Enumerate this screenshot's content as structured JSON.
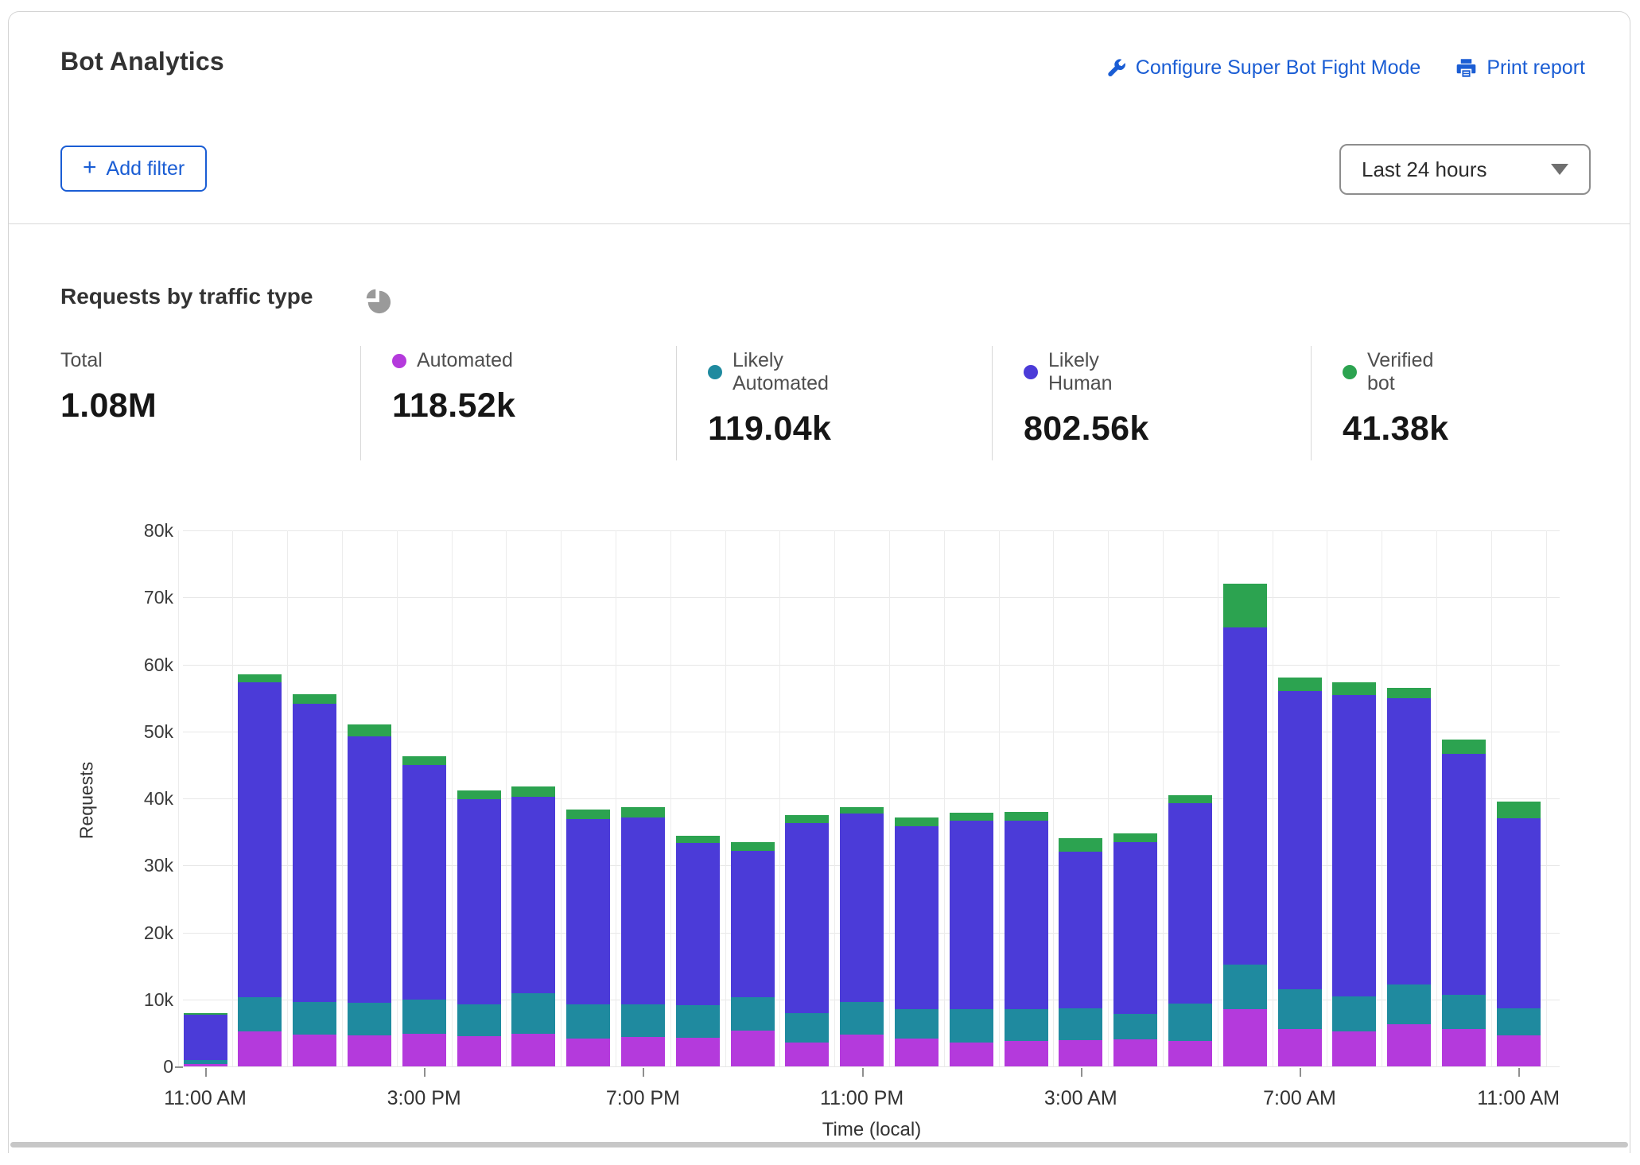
{
  "header": {
    "title": "Bot Analytics",
    "configure_label": "Configure Super Bot Fight Mode",
    "print_label": "Print report"
  },
  "filters": {
    "plus_glyph": "+",
    "add_filter_label": "Add filter",
    "time_range_value": "Last 24 hours"
  },
  "section": {
    "title": "Requests by traffic type"
  },
  "colors": {
    "link_blue": "#1a5dd4",
    "automated": "#b43adc",
    "likely_automated": "#1f8a9f",
    "likely_human": "#4b3bd8",
    "verified_bot": "#2ca350",
    "pie_icon_gray": "#9a9a9a"
  },
  "stats": {
    "items": [
      {
        "label": "Total",
        "value": "1.08M",
        "color": null
      },
      {
        "label": "Automated",
        "value": "118.52k",
        "color": "#b43adc"
      },
      {
        "label": "Likely Automated",
        "value": "119.04k",
        "color": "#1f8a9f"
      },
      {
        "label": "Likely Human",
        "value": "802.56k",
        "color": "#4b3bd8"
      },
      {
        "label": "Verified bot",
        "value": "41.38k",
        "color": "#2ca350"
      }
    ]
  },
  "chart_data": {
    "type": "bar",
    "stacked": true,
    "title": "Requests by traffic type",
    "xlabel": "Time (local)",
    "ylabel": "Requests",
    "unit": "thousands of requests per hour",
    "ylim": [
      0,
      80
    ],
    "ytick_step": 10,
    "ytick_labels": [
      "0",
      "10k",
      "20k",
      "30k",
      "40k",
      "50k",
      "60k",
      "70k",
      "80k"
    ],
    "grid": true,
    "legend_position": "top-stats-row",
    "x_hours": [
      "11:00 AM",
      "12:00 PM",
      "1:00 PM",
      "2:00 PM",
      "3:00 PM",
      "4:00 PM",
      "5:00 PM",
      "6:00 PM",
      "7:00 PM",
      "8:00 PM",
      "9:00 PM",
      "10:00 PM",
      "11:00 PM",
      "12:00 AM",
      "1:00 AM",
      "2:00 AM",
      "3:00 AM",
      "4:00 AM",
      "5:00 AM",
      "6:00 AM",
      "7:00 AM",
      "8:00 AM",
      "9:00 AM",
      "10:00 AM",
      "11:00 AM"
    ],
    "xtick_indices": [
      0,
      4,
      8,
      12,
      16,
      20,
      24
    ],
    "xtick_labels": [
      "11:00 AM",
      "3:00 PM",
      "7:00 PM",
      "11:00 PM",
      "3:00 AM",
      "7:00 AM",
      "11:00 AM"
    ],
    "series": [
      {
        "name": "Automated",
        "color": "#b43adc",
        "values": [
          0.4,
          5.2,
          4.7,
          4.6,
          4.9,
          4.5,
          4.9,
          4.2,
          4.4,
          4.3,
          5.3,
          3.6,
          4.7,
          4.2,
          3.6,
          3.8,
          3.9,
          4.0,
          3.8,
          8.5,
          5.6,
          5.2,
          6.3,
          5.6,
          4.6
        ]
      },
      {
        "name": "Likely Automated",
        "color": "#1f8a9f",
        "values": [
          0.5,
          5.1,
          4.9,
          4.9,
          5.1,
          4.8,
          6.0,
          5.1,
          4.8,
          4.8,
          5.0,
          4.4,
          4.9,
          4.4,
          4.9,
          4.7,
          4.8,
          3.8,
          5.6,
          6.7,
          5.9,
          5.2,
          5.9,
          5.1,
          4.1
        ]
      },
      {
        "name": "Likely Human",
        "color": "#4b3bd8",
        "values": [
          6.8,
          47.0,
          44.5,
          39.8,
          35.0,
          30.6,
          29.3,
          27.6,
          28.0,
          24.2,
          21.9,
          28.3,
          28.1,
          27.2,
          28.2,
          28.2,
          23.4,
          25.7,
          29.9,
          50.3,
          44.5,
          45.0,
          42.7,
          36.0,
          28.3
        ]
      },
      {
        "name": "Verified bot",
        "color": "#2ca350",
        "values": [
          0.3,
          1.2,
          1.5,
          1.7,
          1.3,
          1.3,
          1.6,
          1.4,
          1.5,
          1.1,
          1.3,
          1.2,
          1.0,
          1.4,
          1.2,
          1.3,
          2.0,
          1.3,
          1.2,
          6.5,
          2.0,
          1.9,
          1.6,
          2.1,
          2.5
        ]
      }
    ]
  }
}
